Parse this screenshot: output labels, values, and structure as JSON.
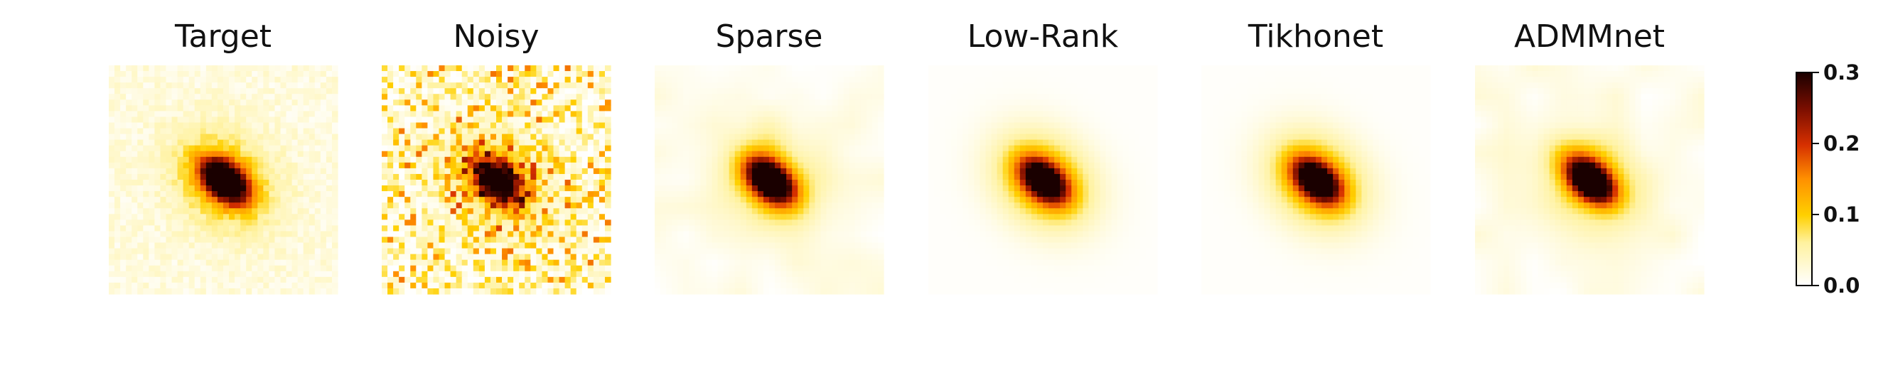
{
  "chart_data": {
    "type": "heatmap",
    "panels": [
      {
        "title": "Target",
        "style": "pixelated-noisy-bg"
      },
      {
        "title": "Noisy",
        "style": "very-noisy"
      },
      {
        "title": "Sparse",
        "style": "smooth-blotchy"
      },
      {
        "title": "Low-Rank",
        "style": "smooth-clean"
      },
      {
        "title": "Tikhonet",
        "style": "smooth-clean"
      },
      {
        "title": "ADMMnet",
        "style": "smooth-blotchy"
      }
    ],
    "colorbar": {
      "colormap": "afmhot_r",
      "vmin": 0.0,
      "vmax": 0.3,
      "ticks": [
        {
          "value": 0.0,
          "label": "0.0"
        },
        {
          "value": 0.1,
          "label": "0.1"
        },
        {
          "value": 0.2,
          "label": "0.2"
        },
        {
          "value": 0.3,
          "label": "0.3"
        }
      ]
    }
  }
}
